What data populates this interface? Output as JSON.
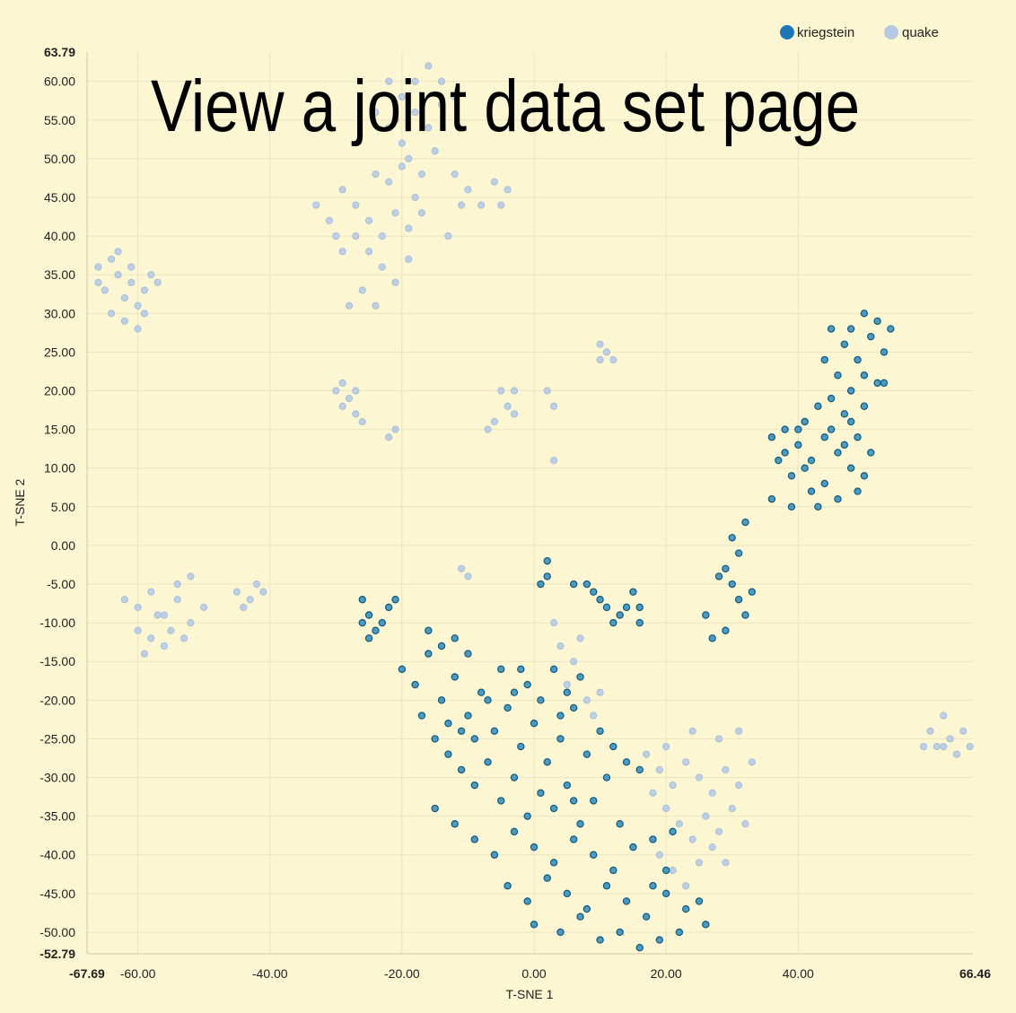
{
  "overlay_text": "View a joint data set page",
  "colors": {
    "kriegstein_fill": "#2d8bbd",
    "kriegstein_stroke": "#11597f",
    "quake_fill": "#bccfe4",
    "quake_stroke": "#a9bfd8",
    "grid": "#ece4c0",
    "background": "#fdf6d3"
  },
  "chart_data": {
    "type": "scatter",
    "xlabel": "T-SNE 1",
    "ylabel": "T-SNE 2",
    "xlim": [
      -67.69,
      66.46
    ],
    "ylim": [
      -52.79,
      63.79
    ],
    "xlim_labels": [
      "-67.69",
      "66.46"
    ],
    "ylim_labels": [
      "-52.79",
      "63.79"
    ],
    "xticks": [
      -60,
      -40,
      -20,
      0,
      20,
      40
    ],
    "xtick_labels": [
      "-60.00",
      "-40.00",
      "-20.00",
      "0.00",
      "20.00",
      "40.00"
    ],
    "yticks": [
      60,
      55,
      50,
      45,
      40,
      35,
      30,
      25,
      20,
      15,
      10,
      5,
      0,
      -5,
      -10,
      -15,
      -20,
      -25,
      -30,
      -35,
      -40,
      -45,
      -50
    ],
    "ytick_labels": [
      "60.00",
      "55.00",
      "50.00",
      "45.00",
      "40.00",
      "35.00",
      "30.00",
      "25.00",
      "20.00",
      "15.00",
      "10.00",
      "5.00",
      "0.00",
      "-5.00",
      "-10.00",
      "-15.00",
      "-20.00",
      "-25.00",
      "-30.00",
      "-35.00",
      "-40.00",
      "-45.00",
      "-50.00"
    ],
    "grid": true,
    "legend_position": "top-right",
    "series": [
      {
        "name": "kriegstein",
        "color": "#2d8bbd",
        "points": [
          [
            48,
            28
          ],
          [
            50,
            30
          ],
          [
            52,
            29
          ],
          [
            47,
            26
          ],
          [
            49,
            24
          ],
          [
            51,
            27
          ],
          [
            53,
            25
          ],
          [
            50,
            22
          ],
          [
            46,
            22
          ],
          [
            48,
            20
          ],
          [
            52,
            21
          ],
          [
            45,
            19
          ],
          [
            47,
            17
          ],
          [
            43,
            18
          ],
          [
            41,
            16
          ],
          [
            44,
            14
          ],
          [
            46,
            12
          ],
          [
            48,
            10
          ],
          [
            50,
            9
          ],
          [
            42,
            11
          ],
          [
            40,
            13
          ],
          [
            38,
            12
          ],
          [
            44,
            8
          ],
          [
            46,
            6
          ],
          [
            42,
            7
          ],
          [
            39,
            9
          ],
          [
            37,
            11
          ],
          [
            36,
            14
          ],
          [
            40,
            15
          ],
          [
            45,
            15
          ],
          [
            47,
            13
          ],
          [
            49,
            14
          ],
          [
            51,
            12
          ],
          [
            49,
            7
          ],
          [
            43,
            5
          ],
          [
            54,
            28
          ],
          [
            45,
            28
          ],
          [
            41,
            10
          ],
          [
            36,
            6
          ],
          [
            38,
            15
          ],
          [
            48,
            16
          ],
          [
            53,
            21
          ],
          [
            44,
            24
          ],
          [
            50,
            18
          ],
          [
            39,
            5
          ],
          [
            30,
            1
          ],
          [
            31,
            -1
          ],
          [
            32,
            3
          ],
          [
            29,
            -3
          ],
          [
            30,
            -5
          ],
          [
            31,
            -7
          ],
          [
            32,
            -9
          ],
          [
            29,
            -11
          ],
          [
            27,
            -12
          ],
          [
            26,
            -9
          ],
          [
            28,
            -4
          ],
          [
            33,
            -6
          ],
          [
            -26,
            -7
          ],
          [
            -25,
            -9
          ],
          [
            -24,
            -11
          ],
          [
            -22,
            -8
          ],
          [
            -23,
            -10
          ],
          [
            -25,
            -12
          ],
          [
            -21,
            -7
          ],
          [
            -26,
            -10
          ],
          [
            2,
            -2
          ],
          [
            2,
            -4
          ],
          [
            1,
            -5
          ],
          [
            6,
            -5
          ],
          [
            9,
            -6
          ],
          [
            11,
            -8
          ],
          [
            13,
            -9
          ],
          [
            15,
            -6
          ],
          [
            12,
            -10
          ],
          [
            14,
            -8
          ],
          [
            16,
            -10
          ],
          [
            8,
            -5
          ],
          [
            10,
            -7
          ],
          [
            16,
            -8
          ],
          [
            -20,
            -16
          ],
          [
            -18,
            -18
          ],
          [
            -16,
            -14
          ],
          [
            -14,
            -20
          ],
          [
            -12,
            -17
          ],
          [
            -10,
            -22
          ],
          [
            -8,
            -19
          ],
          [
            -6,
            -24
          ],
          [
            -4,
            -21
          ],
          [
            -2,
            -26
          ],
          [
            0,
            -23
          ],
          [
            2,
            -28
          ],
          [
            4,
            -25
          ],
          [
            6,
            -21
          ],
          [
            8,
            -27
          ],
          [
            10,
            -24
          ],
          [
            12,
            -26
          ],
          [
            14,
            -28
          ],
          [
            16,
            -29
          ],
          [
            -16,
            -11
          ],
          [
            -14,
            -13
          ],
          [
            -12,
            -12
          ],
          [
            -10,
            -14
          ],
          [
            -17,
            -22
          ],
          [
            -15,
            -25
          ],
          [
            -13,
            -27
          ],
          [
            -11,
            -29
          ],
          [
            -9,
            -31
          ],
          [
            -7,
            -28
          ],
          [
            -5,
            -33
          ],
          [
            -3,
            -30
          ],
          [
            -1,
            -35
          ],
          [
            1,
            -32
          ],
          [
            3,
            -34
          ],
          [
            5,
            -31
          ],
          [
            7,
            -36
          ],
          [
            9,
            -33
          ],
          [
            11,
            -30
          ],
          [
            -15,
            -34
          ],
          [
            -12,
            -36
          ],
          [
            -9,
            -38
          ],
          [
            -6,
            -40
          ],
          [
            -3,
            -37
          ],
          [
            0,
            -39
          ],
          [
            3,
            -41
          ],
          [
            6,
            -38
          ],
          [
            9,
            -40
          ],
          [
            12,
            -42
          ],
          [
            15,
            -39
          ],
          [
            -4,
            -44
          ],
          [
            -1,
            -46
          ],
          [
            2,
            -43
          ],
          [
            5,
            -45
          ],
          [
            8,
            -47
          ],
          [
            11,
            -44
          ],
          [
            14,
            -46
          ],
          [
            17,
            -48
          ],
          [
            20,
            -45
          ],
          [
            23,
            -47
          ],
          [
            26,
            -49
          ],
          [
            0,
            -49
          ],
          [
            4,
            -50
          ],
          [
            7,
            -48
          ],
          [
            10,
            -51
          ],
          [
            13,
            -50
          ],
          [
            16,
            -52
          ],
          [
            19,
            -51
          ],
          [
            22,
            -50
          ],
          [
            25,
            -46
          ],
          [
            -2,
            -16
          ],
          [
            -1,
            -18
          ],
          [
            1,
            -20
          ],
          [
            3,
            -16
          ],
          [
            4,
            -22
          ],
          [
            5,
            -19
          ],
          [
            7,
            -17
          ],
          [
            -3,
            -19
          ],
          [
            -5,
            -16
          ],
          [
            -7,
            -20
          ],
          [
            -9,
            -25
          ],
          [
            -11,
            -24
          ],
          [
            -13,
            -23
          ],
          [
            6,
            -33
          ],
          [
            13,
            -36
          ],
          [
            18,
            -38
          ],
          [
            21,
            -37
          ],
          [
            20,
            -42
          ],
          [
            18,
            -44
          ]
        ]
      },
      {
        "name": "quake",
        "color": "#bccfe4",
        "points": [
          [
            -66,
            36
          ],
          [
            -65,
            33
          ],
          [
            -64,
            37
          ],
          [
            -63,
            35
          ],
          [
            -62,
            32
          ],
          [
            -61,
            34
          ],
          [
            -60,
            31
          ],
          [
            -59,
            33
          ],
          [
            -58,
            35
          ],
          [
            -62,
            29
          ],
          [
            -64,
            30
          ],
          [
            -60,
            28
          ],
          [
            -66,
            34
          ],
          [
            -57,
            34
          ],
          [
            -63,
            38
          ],
          [
            -61,
            36
          ],
          [
            -59,
            30
          ],
          [
            -60,
            -8
          ],
          [
            -58,
            -6
          ],
          [
            -56,
            -9
          ],
          [
            -54,
            -7
          ],
          [
            -52,
            -10
          ],
          [
            -58,
            -12
          ],
          [
            -56,
            -13
          ],
          [
            -54,
            -5
          ],
          [
            -52,
            -4
          ],
          [
            -60,
            -11
          ],
          [
            -62,
            -7
          ],
          [
            -55,
            -11
          ],
          [
            -53,
            -12
          ],
          [
            -50,
            -8
          ],
          [
            -59,
            -14
          ],
          [
            -57,
            -9
          ],
          [
            -45,
            -6
          ],
          [
            -43,
            -7
          ],
          [
            -41,
            -6
          ],
          [
            -44,
            -8
          ],
          [
            -42,
            -5
          ],
          [
            -33,
            44
          ],
          [
            -31,
            42
          ],
          [
            -29,
            46
          ],
          [
            -27,
            44
          ],
          [
            -25,
            42
          ],
          [
            -23,
            40
          ],
          [
            -21,
            43
          ],
          [
            -19,
            41
          ],
          [
            -17,
            43
          ],
          [
            -27,
            40
          ],
          [
            -25,
            38
          ],
          [
            -23,
            36
          ],
          [
            -21,
            34
          ],
          [
            -19,
            37
          ],
          [
            -29,
            38
          ],
          [
            -26,
            33
          ],
          [
            -24,
            31
          ],
          [
            -28,
            31
          ],
          [
            -30,
            40
          ],
          [
            -22,
            47
          ],
          [
            -18,
            45
          ],
          [
            -20,
            49
          ],
          [
            -24,
            48
          ],
          [
            -22,
            60
          ],
          [
            -20,
            58
          ],
          [
            -18,
            56
          ],
          [
            -16,
            54
          ],
          [
            -14,
            57
          ],
          [
            -20,
            52
          ],
          [
            -22,
            54
          ],
          [
            -24,
            56
          ],
          [
            -18,
            60
          ],
          [
            -16,
            62
          ],
          [
            -14,
            60
          ],
          [
            -12,
            58
          ],
          [
            -15,
            51
          ],
          [
            -19,
            50
          ],
          [
            -21,
            55
          ],
          [
            -17,
            48
          ],
          [
            -12,
            48
          ],
          [
            -10,
            46
          ],
          [
            -8,
            44
          ],
          [
            -6,
            47
          ],
          [
            -4,
            46
          ],
          [
            -5,
            44
          ],
          [
            -11,
            44
          ],
          [
            -13,
            40
          ],
          [
            -30,
            20
          ],
          [
            -29,
            18
          ],
          [
            -28,
            19
          ],
          [
            -27,
            17
          ],
          [
            -26,
            16
          ],
          [
            -29,
            21
          ],
          [
            -27,
            20
          ],
          [
            -22,
            14
          ],
          [
            -21,
            15
          ],
          [
            -5,
            20
          ],
          [
            -4,
            18
          ],
          [
            -3,
            17
          ],
          [
            -6,
            16
          ],
          [
            -7,
            15
          ],
          [
            -3,
            20
          ],
          [
            2,
            20
          ],
          [
            3,
            18
          ],
          [
            3,
            11
          ],
          [
            10,
            24
          ],
          [
            11,
            25
          ],
          [
            12,
            24
          ],
          [
            10,
            26
          ],
          [
            -11,
            -3
          ],
          [
            -10,
            -4
          ],
          [
            3,
            -10
          ],
          [
            4,
            -13
          ],
          [
            5,
            -18
          ],
          [
            6,
            -15
          ],
          [
            7,
            -12
          ],
          [
            8,
            -20
          ],
          [
            9,
            -22
          ],
          [
            10,
            -19
          ],
          [
            17,
            -27
          ],
          [
            19,
            -29
          ],
          [
            21,
            -31
          ],
          [
            23,
            -28
          ],
          [
            25,
            -30
          ],
          [
            27,
            -32
          ],
          [
            29,
            -29
          ],
          [
            31,
            -31
          ],
          [
            33,
            -28
          ],
          [
            20,
            -34
          ],
          [
            22,
            -36
          ],
          [
            24,
            -38
          ],
          [
            26,
            -35
          ],
          [
            28,
            -37
          ],
          [
            30,
            -34
          ],
          [
            32,
            -36
          ],
          [
            19,
            -40
          ],
          [
            21,
            -42
          ],
          [
            23,
            -44
          ],
          [
            25,
            -41
          ],
          [
            27,
            -39
          ],
          [
            29,
            -41
          ],
          [
            18,
            -32
          ],
          [
            20,
            -26
          ],
          [
            24,
            -24
          ],
          [
            28,
            -25
          ],
          [
            31,
            -24
          ],
          [
            60,
            -24
          ],
          [
            61,
            -26
          ],
          [
            62,
            -22
          ],
          [
            63,
            -25
          ],
          [
            64,
            -27
          ],
          [
            65,
            -24
          ],
          [
            66,
            -26
          ],
          [
            59,
            -26
          ],
          [
            62,
            -26
          ]
        ]
      }
    ]
  }
}
